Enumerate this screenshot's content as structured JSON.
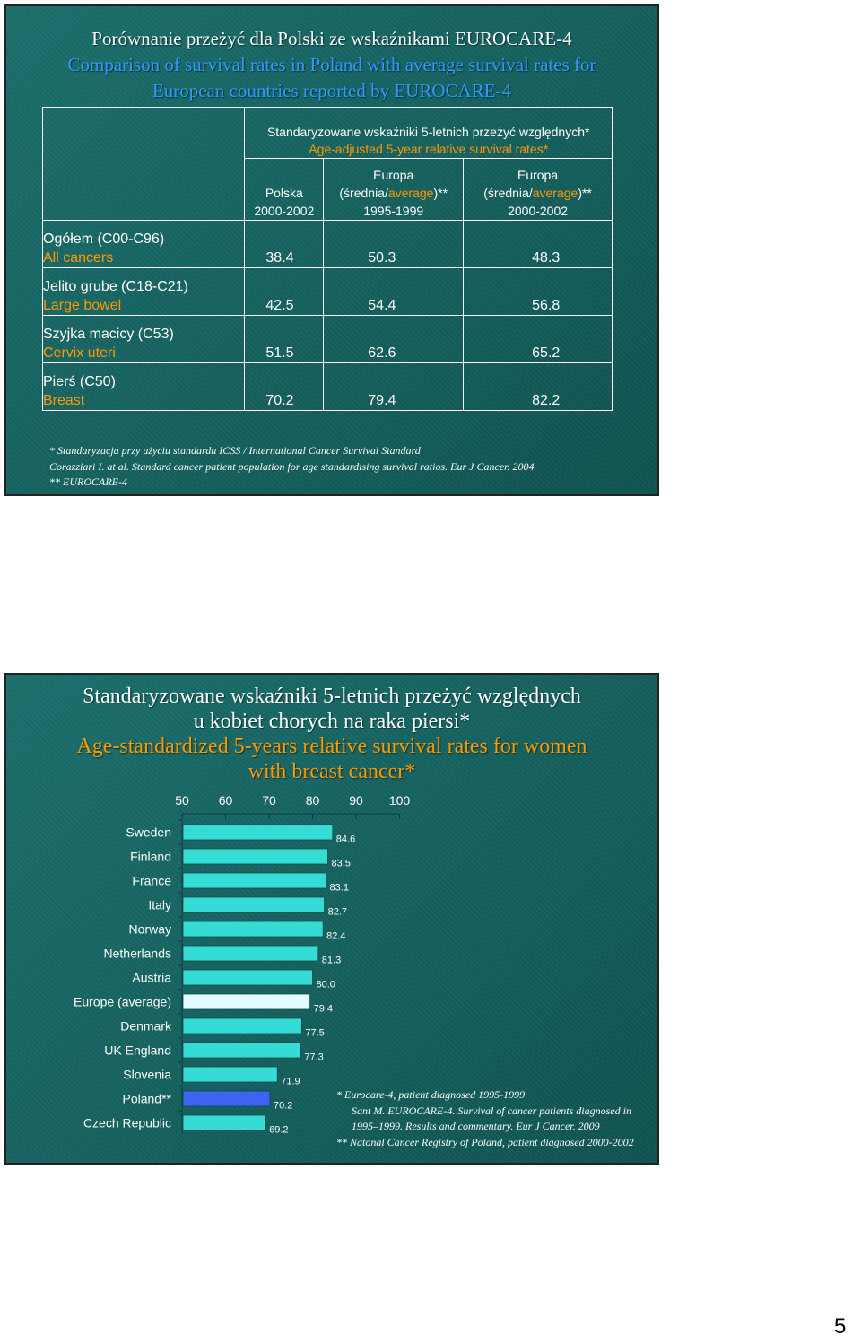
{
  "slide1": {
    "title_pl": "Porównanie przeżyć dla Polski ze wskaźnikami EUROCARE-4",
    "title_en_line1": "Comparison of survival rates in Poland with average survival rates for",
    "title_en_line2": "European countries reported by EUROCARE-4",
    "table": {
      "header_pl": "Standaryzowane wskaźniki 5-letnich przeżyć względnych*",
      "header_en": "Age-adjusted 5-year relative survival rates*",
      "columns": [
        {
          "line1": "Polska",
          "line2": "2000-2002"
        },
        {
          "line1": "Europa",
          "pre": "(średnia/",
          "avg": "average",
          "post": ")**",
          "line3": "1995-1999"
        },
        {
          "line1": "Europa",
          "pre": "(średnia/",
          "avg": "average",
          "post": ")**",
          "line3": "2000-2002"
        }
      ],
      "rows": [
        {
          "pl": "Ogółem (C00-C96)",
          "en": "All cancers",
          "values": [
            "38.4",
            "50.3",
            "48.3"
          ]
        },
        {
          "pl": "Jelito grube (C18-C21)",
          "en": "Large bowel",
          "values": [
            "42.5",
            "54.4",
            "56.8"
          ]
        },
        {
          "pl": "Szyjka macicy (C53)",
          "en": "Cervix uteri",
          "values": [
            "51.5",
            "62.6",
            "65.2"
          ]
        },
        {
          "pl": "Pierś (C50)",
          "en": "Breast",
          "values": [
            "70.2",
            "79.4",
            "82.2"
          ]
        }
      ]
    },
    "footnotes": [
      "* Standaryzacja przy użyciu standardu ICSS / International Cancer Survival Standard",
      "Corazziari I. at al. Standard cancer patient population for age standardising survival ratios. Eur J Cancer. 2004",
      "** EUROCARE-4"
    ]
  },
  "slide2": {
    "title_line1": "Standaryzowane wskaźniki 5-letnich przeżyć względnych",
    "title_line2": "u kobiet chorych na raka piersi*",
    "title_line3": "Age-standardized 5-years relative survival rates for women",
    "title_line4": "with breast cancer*",
    "references": [
      "* Eurocare-4, patient diagnosed 1995-1999",
      "Sant M. EUROCARE-4. Survival of cancer patients diagnosed in",
      "1995–1999. Results and commentary. Eur J Cancer. 2009",
      "** Natonal Cancer Registry of Poland, patient diagnosed 2000-2002"
    ]
  },
  "chart_data": {
    "type": "bar",
    "orientation": "horizontal",
    "categories": [
      "Sweden",
      "Finland",
      "France",
      "Italy",
      "Norway",
      "Netherlands",
      "Austria",
      "Europe (average)",
      "Denmark",
      "UK England",
      "Slovenia",
      "Poland**",
      "Czech Republic"
    ],
    "values": [
      84.6,
      83.5,
      83.1,
      82.7,
      82.4,
      81.3,
      80.0,
      79.4,
      77.5,
      77.3,
      71.9,
      70.2,
      69.2
    ],
    "value_labels": [
      "84.6",
      "83.5",
      "83.1",
      "82.7",
      "82.4",
      "81.3",
      "80.0",
      "79.4",
      "77.5",
      "77.3",
      "71.9",
      "70.2",
      "69.2"
    ],
    "xticks": [
      "50",
      "60",
      "70",
      "80",
      "90",
      "100"
    ],
    "xlim": [
      50,
      100
    ],
    "axis_position": "top",
    "colors": {
      "default": "#35dcd5",
      "Europe (average)": "#e3fbfc",
      "Poland**": "#3e62f2"
    }
  },
  "page": {
    "number": "5"
  }
}
